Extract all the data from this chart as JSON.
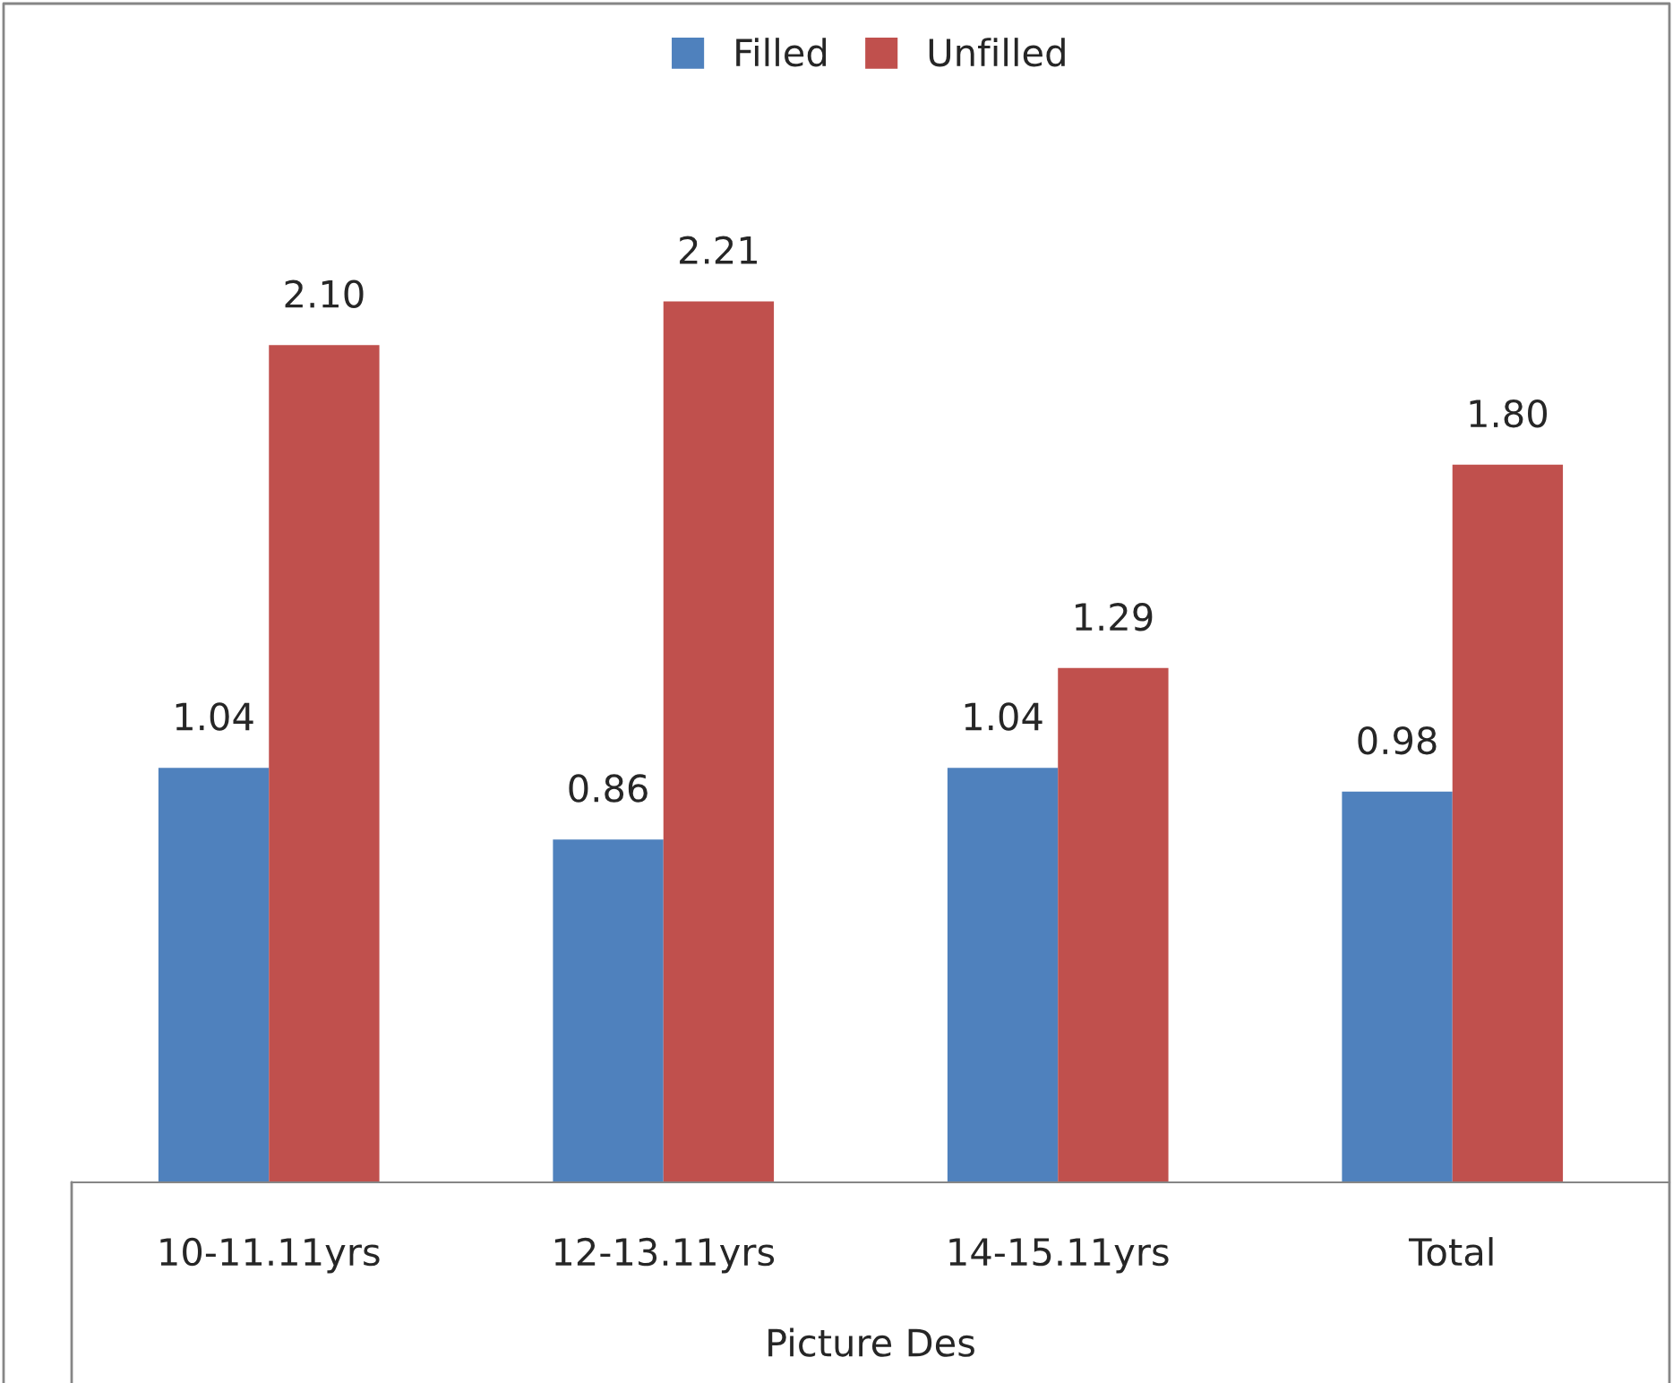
{
  "chart_data": {
    "type": "bar",
    "xlabel": "Picture Des",
    "categories": [
      "10-11.11yrs",
      "12-13.11yrs",
      "14-15.11yrs",
      "Total"
    ],
    "series": [
      {
        "name": "Filled",
        "color": "#4f81bd",
        "values": [
          1.04,
          0.86,
          1.04,
          0.98
        ],
        "value_labels": [
          "1.04",
          "0.86",
          "1.04",
          "0.98"
        ]
      },
      {
        "name": "Unfilled",
        "color": "#c0504d",
        "values": [
          2.1,
          2.21,
          1.29,
          1.8
        ],
        "value_labels": [
          "2.10",
          "2.21",
          "1.29",
          "1.80"
        ]
      }
    ],
    "legend": "top",
    "grid": false,
    "tick_labels": "x"
  }
}
